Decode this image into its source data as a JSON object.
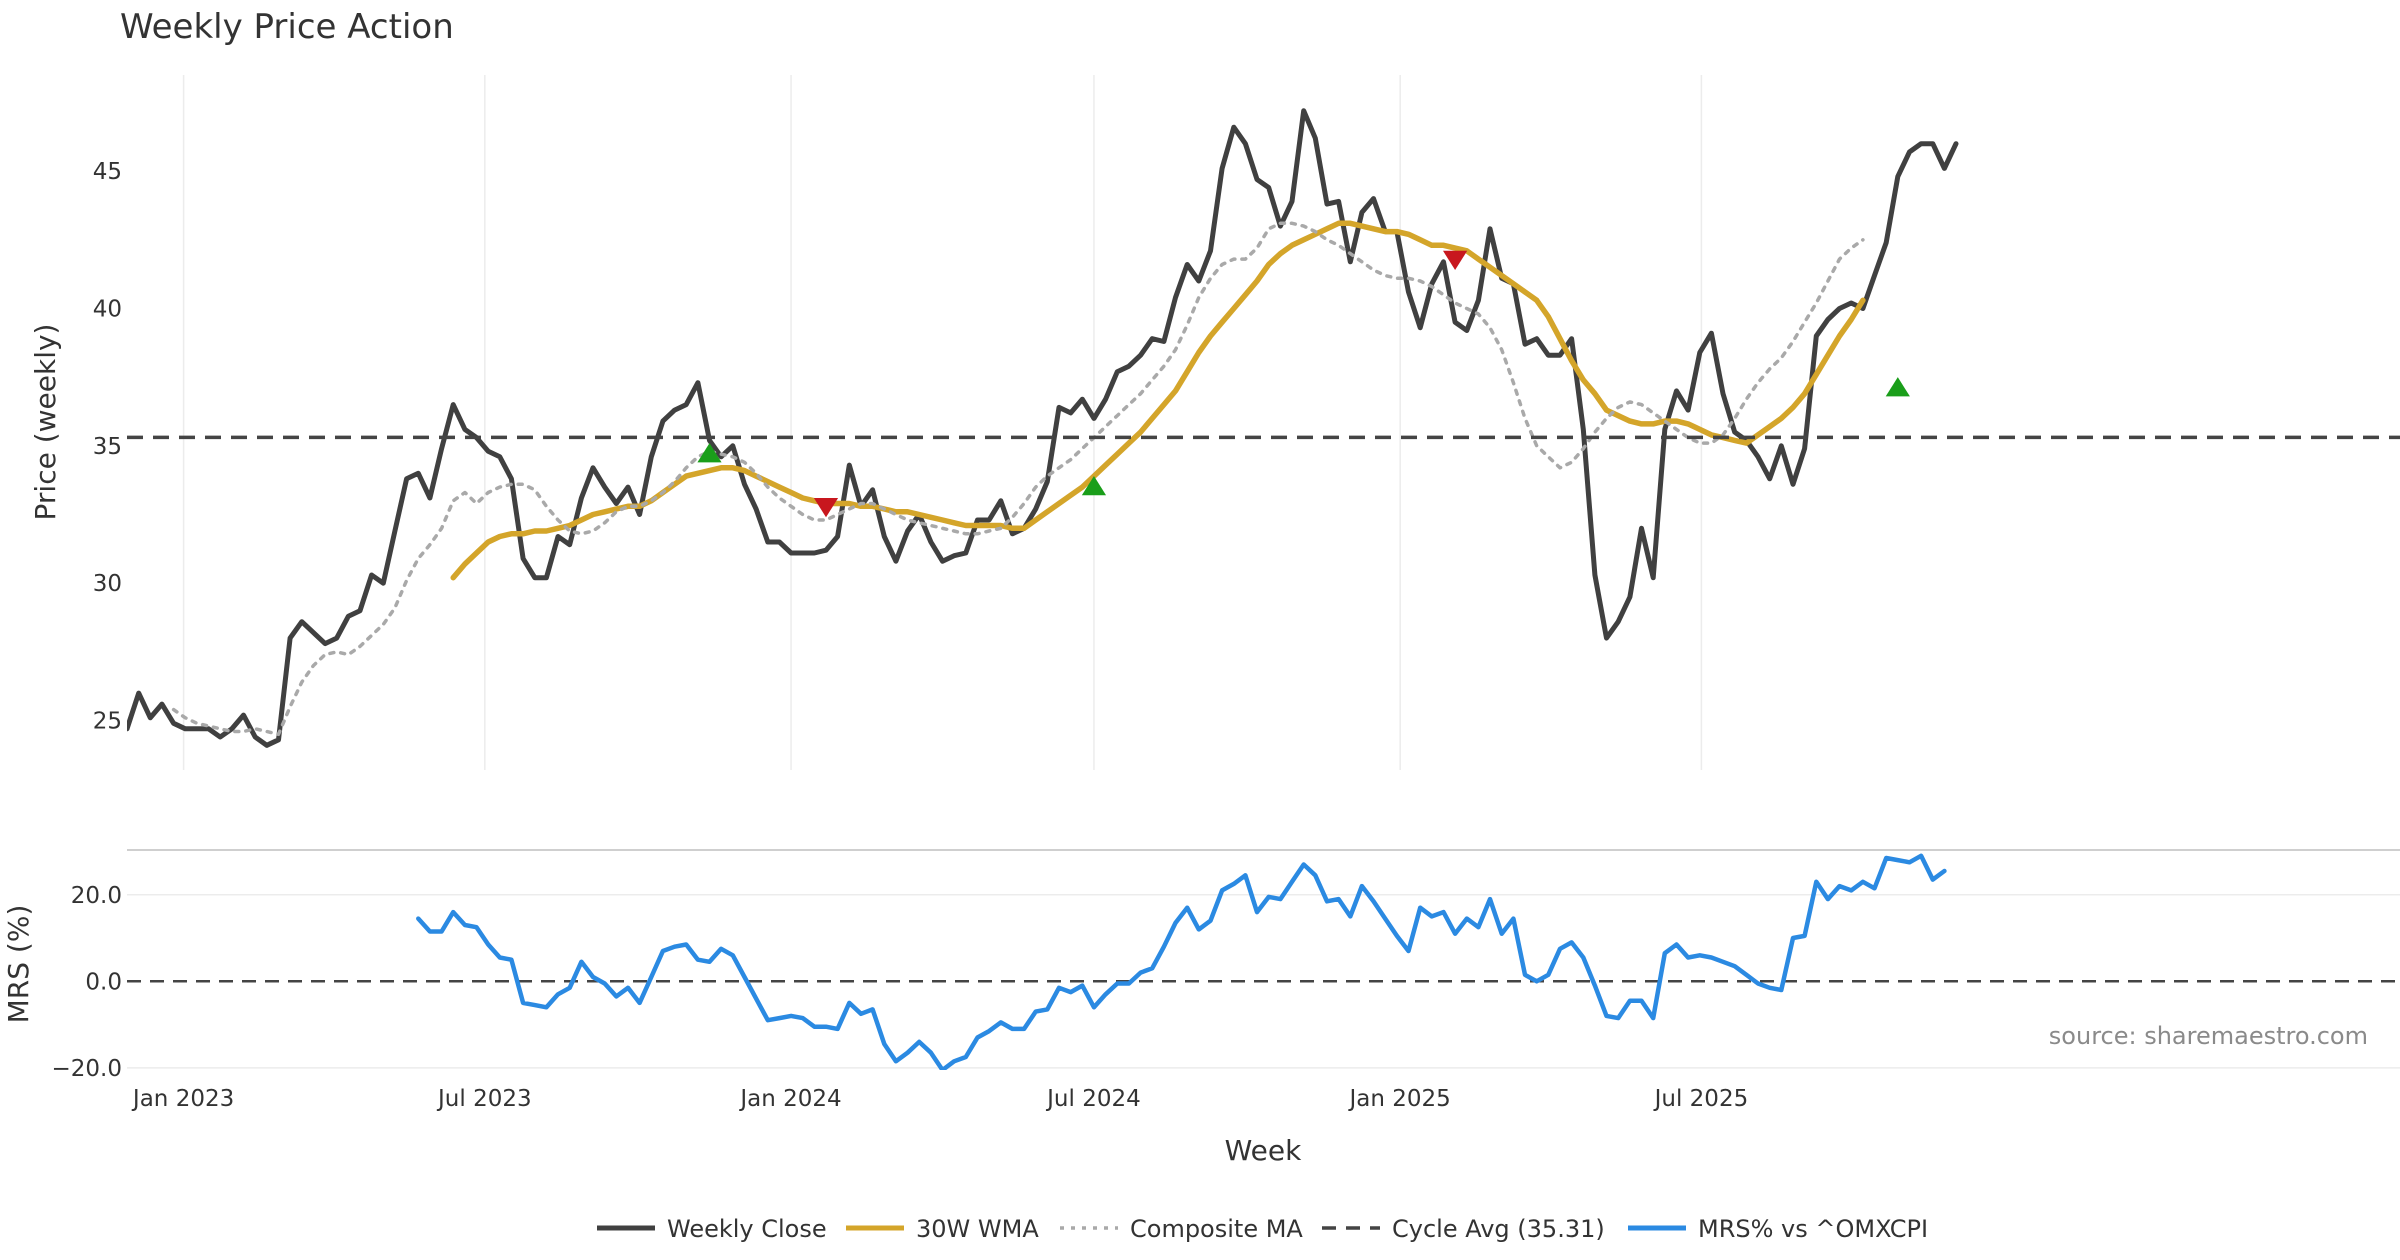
{
  "chart_data": [
    {
      "type": "line",
      "title": "Weekly Price Action",
      "xlabel": "",
      "ylabel": "Price (weekly)",
      "ylim": [
        23.2,
        48.5
      ],
      "yticks": [
        25,
        30,
        35,
        40,
        45
      ],
      "grid": "vertical",
      "x_start": "2022-11-28",
      "x_step_days": 7,
      "cycle_avg": 35.31,
      "series": [
        {
          "name": "Weekly Close",
          "color": "#404040",
          "start_index": 0,
          "values": [
            24.7,
            26.0,
            25.1,
            25.6,
            24.9,
            24.7,
            24.7,
            24.7,
            24.4,
            24.7,
            25.2,
            24.4,
            24.1,
            24.3,
            28.0,
            28.6,
            28.2,
            27.8,
            28.0,
            28.8,
            29.0,
            30.3,
            30.0,
            31.9,
            33.8,
            34.0,
            33.1,
            34.9,
            36.5,
            35.6,
            35.3,
            34.8,
            34.6,
            33.8,
            30.9,
            30.2,
            30.2,
            31.7,
            31.4,
            33.1,
            34.2,
            33.5,
            32.9,
            33.5,
            32.5,
            34.6,
            35.9,
            36.3,
            36.5,
            37.3,
            35.2,
            34.6,
            35.0,
            33.6,
            32.7,
            31.5,
            31.5,
            31.1,
            31.1,
            31.1,
            31.2,
            31.7,
            34.3,
            32.8,
            33.4,
            31.7,
            30.8,
            31.9,
            32.5,
            31.5,
            30.8,
            31.0,
            31.1,
            32.3,
            32.3,
            33.0,
            31.8,
            32.0,
            32.7,
            33.7,
            36.4,
            36.2,
            36.7,
            36.0,
            36.7,
            37.7,
            37.9,
            38.3,
            38.9,
            38.8,
            40.4,
            41.6,
            41.0,
            42.1,
            45.1,
            46.6,
            46.0,
            44.7,
            44.4,
            43.0,
            43.9,
            47.2,
            46.2,
            43.8,
            43.9,
            41.7,
            43.5,
            44.0,
            42.8,
            42.8,
            40.6,
            39.3,
            40.9,
            41.7,
            39.5,
            39.2,
            40.3,
            42.9,
            41.1,
            40.9,
            38.7,
            38.9,
            38.3,
            38.3,
            38.9,
            35.6,
            30.3,
            28.0,
            28.6,
            29.5,
            32.0,
            30.2,
            35.6,
            37.0,
            36.3,
            38.4,
            39.1,
            36.9,
            35.5,
            35.2,
            34.6,
            33.8,
            35.0,
            33.6,
            34.9,
            39.0,
            39.6,
            40.0,
            40.2,
            40.0,
            41.2,
            42.4,
            44.8,
            45.7,
            46.0,
            46.0,
            45.1,
            46.0
          ]
        },
        {
          "name": "30W WMA",
          "color": "#d4a52a",
          "start_index": 28,
          "values": [
            30.2,
            30.7,
            31.1,
            31.5,
            31.7,
            31.8,
            31.8,
            31.9,
            31.9,
            32.0,
            32.1,
            32.3,
            32.5,
            32.6,
            32.7,
            32.8,
            32.8,
            33.0,
            33.3,
            33.6,
            33.9,
            34.0,
            34.1,
            34.2,
            34.2,
            34.1,
            33.9,
            33.7,
            33.5,
            33.3,
            33.1,
            33.0,
            32.9,
            32.9,
            32.9,
            32.8,
            32.8,
            32.7,
            32.6,
            32.6,
            32.5,
            32.4,
            32.3,
            32.2,
            32.1,
            32.1,
            32.1,
            32.1,
            32.0,
            32.0,
            32.3,
            32.6,
            32.9,
            33.2,
            33.5,
            33.9,
            34.3,
            34.7,
            35.1,
            35.5,
            36.0,
            36.5,
            37.0,
            37.7,
            38.4,
            39.0,
            39.5,
            40.0,
            40.5,
            41.0,
            41.6,
            42.0,
            42.3,
            42.5,
            42.7,
            42.9,
            43.1,
            43.1,
            43.0,
            42.9,
            42.8,
            42.8,
            42.7,
            42.5,
            42.3,
            42.3,
            42.2,
            42.1,
            41.8,
            41.5,
            41.2,
            40.9,
            40.6,
            40.3,
            39.7,
            38.9,
            38.1,
            37.4,
            36.9,
            36.3,
            36.1,
            35.9,
            35.8,
            35.8,
            35.9,
            35.9,
            35.8,
            35.6,
            35.4,
            35.3,
            35.2,
            35.1,
            35.4,
            35.7,
            36.0,
            36.4,
            36.9,
            37.6,
            38.3,
            39.0,
            39.6,
            40.3
          ]
        },
        {
          "name": "Composite MA",
          "color": "#a9a9a9",
          "dash": "dotted",
          "start_index": 4,
          "values": [
            25.4,
            25.1,
            24.9,
            24.8,
            24.7,
            24.6,
            24.6,
            24.7,
            24.6,
            24.5,
            25.5,
            26.4,
            27.0,
            27.4,
            27.5,
            27.4,
            27.7,
            28.1,
            28.5,
            29.1,
            30.1,
            30.9,
            31.4,
            32.0,
            33.0,
            33.3,
            32.9,
            33.3,
            33.5,
            33.6,
            33.6,
            33.4,
            32.8,
            32.3,
            31.9,
            31.8,
            31.9,
            32.2,
            32.6,
            32.8,
            32.8,
            33.0,
            33.3,
            33.7,
            34.2,
            34.6,
            34.8,
            34.7,
            34.6,
            34.4,
            34.0,
            33.5,
            33.1,
            32.8,
            32.5,
            32.3,
            32.3,
            32.5,
            32.7,
            32.9,
            32.9,
            32.7,
            32.5,
            32.3,
            32.2,
            32.1,
            32.0,
            31.9,
            31.8,
            31.8,
            31.9,
            32.0,
            32.4,
            32.9,
            33.5,
            33.9,
            34.2,
            34.5,
            34.9,
            35.3,
            35.7,
            36.1,
            36.5,
            36.9,
            37.4,
            37.9,
            38.5,
            39.4,
            40.4,
            41.1,
            41.6,
            41.8,
            41.8,
            42.2,
            42.9,
            43.1,
            43.1,
            43.0,
            42.8,
            42.5,
            42.3,
            42.0,
            41.7,
            41.4,
            41.2,
            41.1,
            41.1,
            41.0,
            40.8,
            40.5,
            40.2,
            40.0,
            39.8,
            39.3,
            38.5,
            37.3,
            36.0,
            35.0,
            34.6,
            34.2,
            34.4,
            34.9,
            35.5,
            36.0,
            36.4,
            36.6,
            36.5,
            36.2,
            35.9,
            35.6,
            35.3,
            35.1,
            35.1,
            35.4,
            36.0,
            36.7,
            37.3,
            37.8,
            38.2,
            38.8,
            39.5,
            40.2,
            41.0,
            41.8,
            42.2,
            42.5
          ]
        },
        {
          "name": "Cycle Avg (35.31)",
          "color": "#444444",
          "dash": "dashed",
          "constant": 35.31
        }
      ],
      "markers": {
        "buy": [
          {
            "index": 50,
            "value": 34.7
          },
          {
            "index": 83,
            "value": 33.5
          },
          {
            "index": 152,
            "value": 37.1
          }
        ],
        "sell": [
          {
            "index": 60,
            "value": 32.8
          },
          {
            "index": 114,
            "value": 41.8
          }
        ],
        "buy_color": "#1a9e1a",
        "sell_color": "#c8171e"
      }
    },
    {
      "type": "line",
      "xlabel": "Week",
      "ylabel": "MRS (%)",
      "ylim": [
        -20.5,
        31.5
      ],
      "yticks": [
        20.0,
        0.0,
        -20.0
      ],
      "ytick_labels": [
        "20.0",
        "0.0",
        "−20.0"
      ],
      "xticks": [
        "Jan 2023",
        "Jul 2023",
        "Jan 2024",
        "Jul 2024",
        "Jan 2025",
        "Jul 2025"
      ],
      "xtick_dates": [
        "2023-01-01",
        "2023-07-01",
        "2024-01-01",
        "2024-07-01",
        "2025-01-01",
        "2025-07-01"
      ],
      "grid": "horizontal",
      "zero_line": 0,
      "series": [
        {
          "name": "MRS% vs ^OMXCPI",
          "color": "#2b8ae2",
          "start_index": 25,
          "values": [
            14.5,
            11.5,
            11.5,
            16.0,
            13.0,
            12.5,
            8.5,
            5.5,
            5.0,
            -5.0,
            -5.5,
            -6.0,
            -3.0,
            -1.5,
            4.5,
            1.0,
            -0.5,
            -3.5,
            -1.5,
            -5.0,
            1.0,
            7.0,
            8.0,
            8.5,
            5.0,
            4.5,
            7.5,
            6.0,
            1.0,
            -4.0,
            -9.0,
            -8.5,
            -8.0,
            -8.5,
            -10.5,
            -10.5,
            -11.0,
            -5.0,
            -7.5,
            -6.5,
            -14.5,
            -18.5,
            -16.5,
            -14.0,
            -16.5,
            -20.5,
            -18.5,
            -17.5,
            -13.0,
            -11.5,
            -9.5,
            -11.0,
            -11.0,
            -7.0,
            -6.5,
            -1.5,
            -2.5,
            -1.0,
            -6.0,
            -3.0,
            -0.5,
            -0.5,
            2.0,
            3.0,
            8.0,
            13.5,
            17.0,
            12.0,
            14.0,
            21.0,
            22.5,
            24.5,
            16.0,
            19.5,
            19.0,
            23.0,
            27.0,
            24.5,
            18.5,
            19.0,
            15.0,
            22.0,
            18.5,
            14.5,
            10.5,
            7.0,
            17.0,
            15.0,
            16.0,
            11.0,
            14.5,
            12.5,
            19.0,
            11.0,
            14.5,
            1.5,
            0.0,
            1.5,
            7.5,
            9.0,
            5.5,
            -1.0,
            -8.0,
            -8.5,
            -4.5,
            -4.5,
            -8.5,
            6.5,
            8.5,
            5.5,
            6.0,
            5.5,
            4.5,
            3.5,
            1.5,
            -0.5,
            -1.5,
            -2.0,
            10.0,
            10.5,
            23.0,
            19.0,
            22.0,
            21.0,
            23.0,
            21.5,
            28.5,
            28.0,
            27.5,
            29.0,
            23.5,
            25.5
          ]
        }
      ],
      "annotation": "source: sharemaestro.com"
    }
  ],
  "legend": {
    "placement": "bottom-center",
    "items": [
      {
        "label": "Weekly Close",
        "color": "#404040",
        "style": "solid"
      },
      {
        "label": "30W WMA",
        "color": "#d4a52a",
        "style": "solid"
      },
      {
        "label": "Composite MA",
        "color": "#a9a9a9",
        "style": "dotted"
      },
      {
        "label": "Cycle Avg (35.31)",
        "color": "#444444",
        "style": "dashed"
      },
      {
        "label": "MRS% vs ^OMXCPI",
        "color": "#2b8ae2",
        "style": "solid"
      }
    ]
  }
}
